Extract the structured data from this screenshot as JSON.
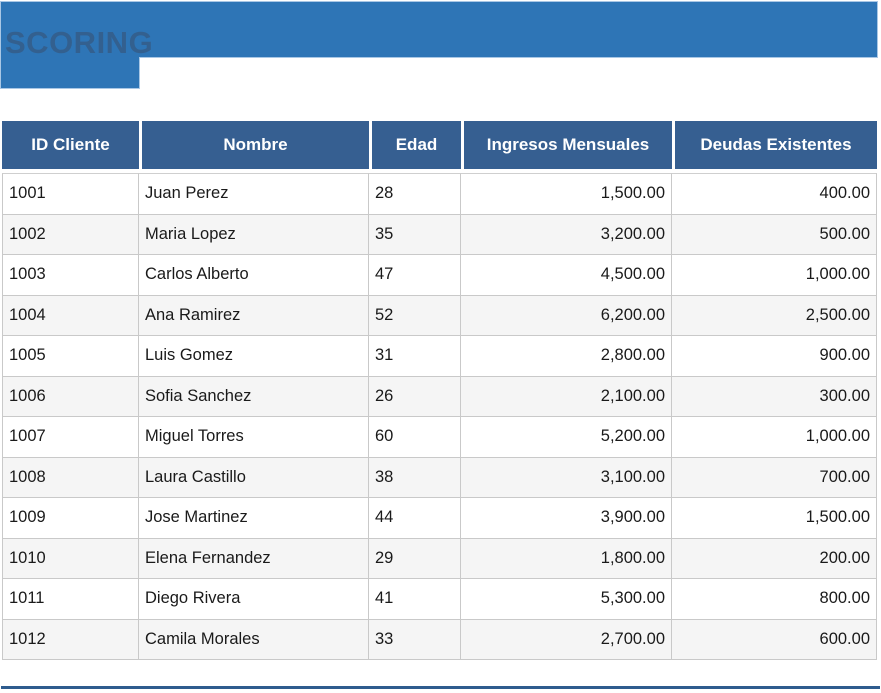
{
  "title_banner": {
    "label": "SCORING"
  },
  "colors": {
    "banner_bg": "#2E75B6",
    "banner_border": "#A9C7E5",
    "banner_title_text": "#33608F",
    "table_header_bg": "#365F91",
    "table_header_text": "#FFFFFF",
    "row_stripe_bg": "#F5F5F5",
    "cell_border": "#C9C9C9",
    "cell_text": "#1A1A1A",
    "bottom_rule": "#2E5C8E"
  },
  "table": {
    "columns": [
      {
        "key": "id",
        "label": "ID Cliente",
        "align": "left"
      },
      {
        "key": "nombre",
        "label": "Nombre",
        "align": "left"
      },
      {
        "key": "edad",
        "label": "Edad",
        "align": "left"
      },
      {
        "key": "ingresos",
        "label": "Ingresos Mensuales",
        "align": "right"
      },
      {
        "key": "deudas",
        "label": "Deudas Existentes",
        "align": "right"
      }
    ],
    "rows": [
      {
        "id": "1001",
        "nombre": "Juan Perez",
        "edad": "28",
        "ingresos": "1,500.00",
        "deudas": "400.00"
      },
      {
        "id": "1002",
        "nombre": "Maria Lopez",
        "edad": "35",
        "ingresos": "3,200.00",
        "deudas": "500.00"
      },
      {
        "id": "1003",
        "nombre": "Carlos Alberto",
        "edad": "47",
        "ingresos": "4,500.00",
        "deudas": "1,000.00"
      },
      {
        "id": "1004",
        "nombre": "Ana Ramirez",
        "edad": "52",
        "ingresos": "6,200.00",
        "deudas": "2,500.00"
      },
      {
        "id": "1005",
        "nombre": "Luis Gomez",
        "edad": "31",
        "ingresos": "2,800.00",
        "deudas": "900.00"
      },
      {
        "id": "1006",
        "nombre": "Sofia Sanchez",
        "edad": "26",
        "ingresos": "2,100.00",
        "deudas": "300.00"
      },
      {
        "id": "1007",
        "nombre": "Miguel Torres",
        "edad": "60",
        "ingresos": "5,200.00",
        "deudas": "1,000.00"
      },
      {
        "id": "1008",
        "nombre": "Laura Castillo",
        "edad": "38",
        "ingresos": "3,100.00",
        "deudas": "700.00"
      },
      {
        "id": "1009",
        "nombre": "Jose Martinez",
        "edad": "44",
        "ingresos": "3,900.00",
        "deudas": "1,500.00"
      },
      {
        "id": "1010",
        "nombre": "Elena Fernandez",
        "edad": "29",
        "ingresos": "1,800.00",
        "deudas": "200.00"
      },
      {
        "id": "1011",
        "nombre": "Diego Rivera",
        "edad": "41",
        "ingresos": "5,300.00",
        "deudas": "800.00"
      },
      {
        "id": "1012",
        "nombre": "Camila Morales",
        "edad": "33",
        "ingresos": "2,700.00",
        "deudas": "600.00"
      }
    ]
  }
}
